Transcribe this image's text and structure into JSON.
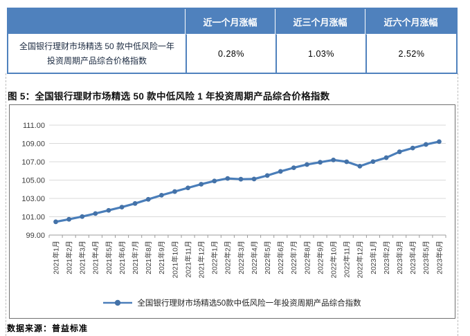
{
  "table": {
    "headers": [
      "",
      "近一个月涨幅",
      "近三个月涨幅",
      "近六个月涨幅"
    ],
    "row": {
      "label_line1": "全国银行理财市场精选 50 款中低风险一年",
      "label_line2": "投资周期产品综合价格指数",
      "values": [
        "0.28%",
        "1.03%",
        "2.52%"
      ]
    }
  },
  "figure": {
    "title": "图 5：全国银行理财市场精选 50 款中低风险 1 年投资周期产品综合价格指数",
    "source": "数据来源：普益标准"
  },
  "chart_data": {
    "type": "line",
    "title": "全国银行理财市场精选 50 款中低风险 1 年投资周期产品综合价格指数",
    "categories": [
      "2021年1月",
      "2021年2月",
      "2021年3月",
      "2021年4月",
      "2021年5月",
      "2021年6月",
      "2021年7月",
      "2021年8月",
      "2021年9月",
      "2021年10月",
      "2021年11月",
      "2021年12月",
      "2022年1月",
      "2022年2月",
      "2022年3月",
      "2022年4月",
      "2022年5月",
      "2022年6月",
      "2022年7月",
      "2022年8月",
      "2022年9月",
      "2022年10月",
      "2022年11月",
      "2022年12月",
      "2023年1月",
      "2023年2月",
      "2023年3月",
      "2023年4月",
      "2023年5月",
      "2023年6月"
    ],
    "values": [
      100.45,
      100.72,
      101.02,
      101.35,
      101.7,
      102.05,
      102.45,
      102.9,
      103.35,
      103.75,
      104.15,
      104.55,
      104.9,
      105.18,
      105.1,
      105.12,
      105.5,
      105.95,
      106.35,
      106.7,
      106.95,
      107.2,
      107.0,
      106.52,
      107.02,
      107.45,
      108.09,
      108.5,
      108.89,
      109.2
    ],
    "ylim": [
      99,
      111
    ],
    "ytick_labels": [
      "99.00",
      "101.00",
      "103.00",
      "105.00",
      "107.00",
      "109.00",
      "111.00"
    ],
    "grid": true,
    "legend": [
      "全国银行理财市场精选50款中低风险一年投资周期产品综合指数"
    ],
    "legend_position": "bottom",
    "line_color": "#4a7eba",
    "marker_color": "#4472a8",
    "gridline_color": "#d9d9d9",
    "axis_color": "#9b9b9b",
    "tick_label_color": "#3c3c3c"
  },
  "summary_changes": {
    "one_month": "0.28%",
    "three_month": "1.03%",
    "six_month": "2.52%"
  }
}
